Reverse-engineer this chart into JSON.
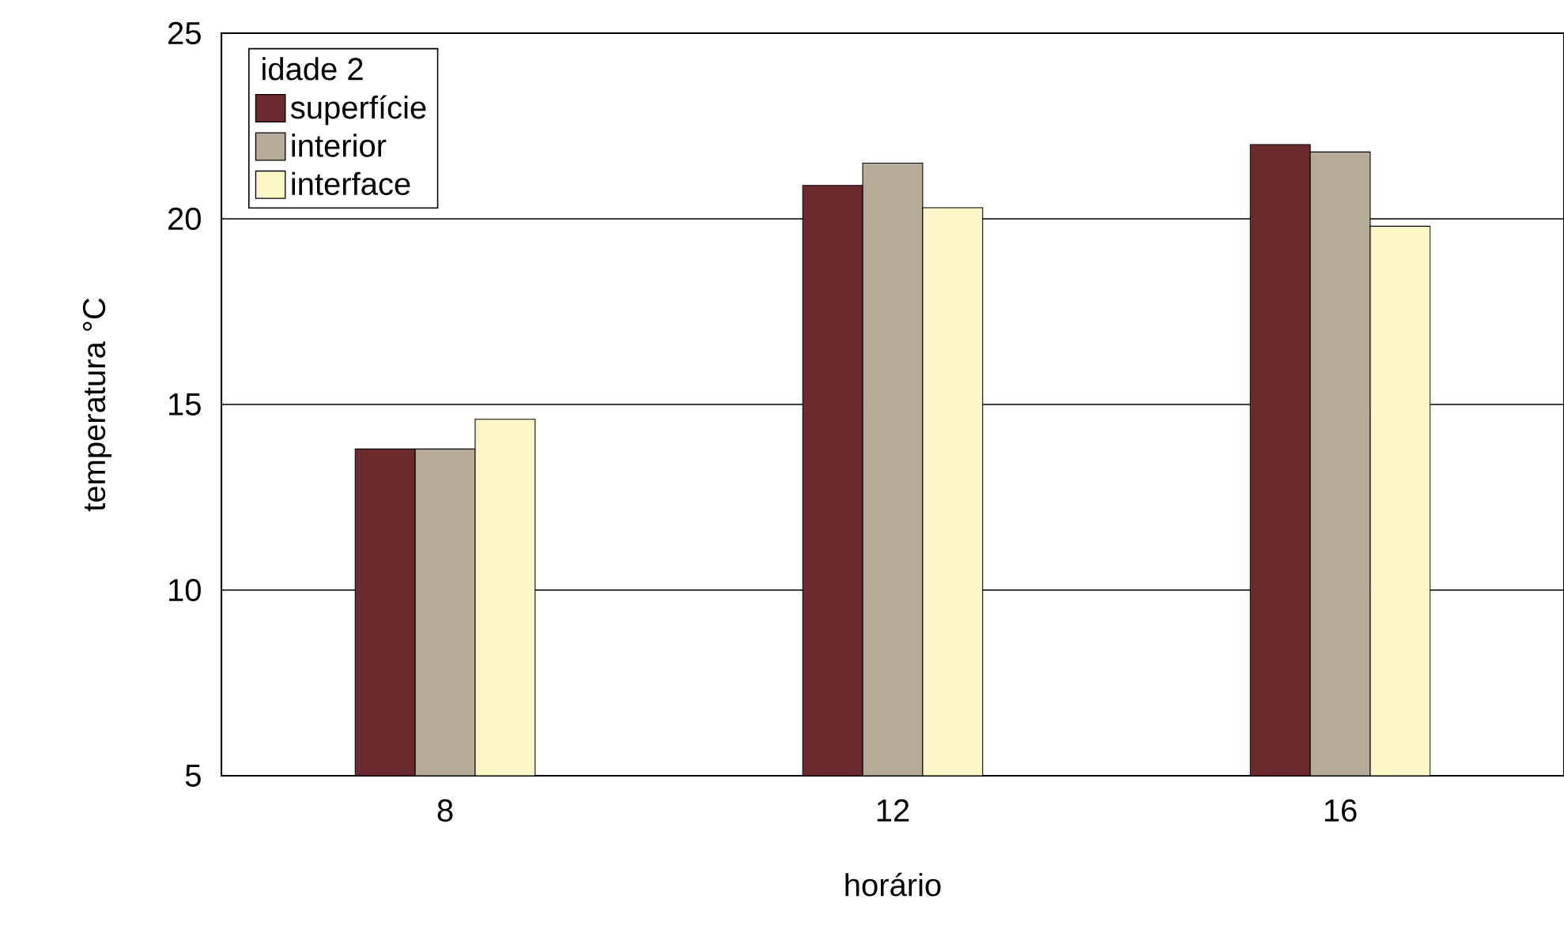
{
  "chart_data": {
    "type": "bar",
    "xlabel": "horário",
    "ylabel": "temperatura °C",
    "legend_title": "idade 2",
    "categories": [
      "8",
      "12",
      "16"
    ],
    "series": [
      {
        "name": "superfície",
        "color": "#6b2a2e",
        "values": [
          13.8,
          20.9,
          22.0
        ]
      },
      {
        "name": "interior",
        "color": "#b5ab98",
        "values": [
          13.8,
          21.5,
          21.8
        ]
      },
      {
        "name": "interface",
        "color": "#fbf6c8",
        "values": [
          14.6,
          20.3,
          19.8
        ]
      }
    ],
    "ylim": [
      5,
      25
    ],
    "yticks": [
      5,
      10,
      15,
      20,
      25
    ],
    "grid": "y",
    "legend": "top left"
  }
}
